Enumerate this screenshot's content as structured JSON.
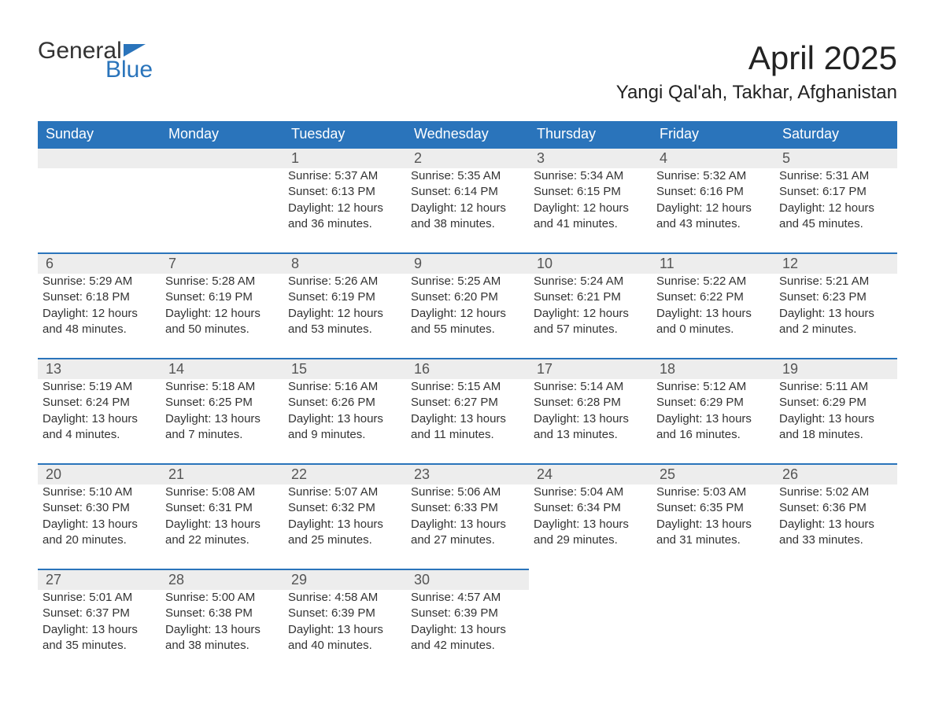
{
  "brand": {
    "part1": "General",
    "part2": "Blue"
  },
  "title": "April 2025",
  "location": "Yangi Qal'ah, Takhar, Afghanistan",
  "colors": {
    "header_bg": "#2a74bb",
    "header_text": "#ffffff",
    "daynum_bg": "#ededed",
    "daynum_border": "#2a74bb",
    "body_text": "#333333",
    "page_bg": "#ffffff",
    "brand_blue": "#2a74bb"
  },
  "fonts": {
    "title_size_pt": 32,
    "location_size_pt": 18,
    "dayheader_size_pt": 14,
    "daynum_size_pt": 14,
    "cell_size_pt": 11
  },
  "day_headers": [
    "Sunday",
    "Monday",
    "Tuesday",
    "Wednesday",
    "Thursday",
    "Friday",
    "Saturday"
  ],
  "weeks": [
    [
      null,
      null,
      {
        "n": "1",
        "sunrise": "Sunrise: 5:37 AM",
        "sunset": "Sunset: 6:13 PM",
        "d1": "Daylight: 12 hours",
        "d2": "and 36 minutes."
      },
      {
        "n": "2",
        "sunrise": "Sunrise: 5:35 AM",
        "sunset": "Sunset: 6:14 PM",
        "d1": "Daylight: 12 hours",
        "d2": "and 38 minutes."
      },
      {
        "n": "3",
        "sunrise": "Sunrise: 5:34 AM",
        "sunset": "Sunset: 6:15 PM",
        "d1": "Daylight: 12 hours",
        "d2": "and 41 minutes."
      },
      {
        "n": "4",
        "sunrise": "Sunrise: 5:32 AM",
        "sunset": "Sunset: 6:16 PM",
        "d1": "Daylight: 12 hours",
        "d2": "and 43 minutes."
      },
      {
        "n": "5",
        "sunrise": "Sunrise: 5:31 AM",
        "sunset": "Sunset: 6:17 PM",
        "d1": "Daylight: 12 hours",
        "d2": "and 45 minutes."
      }
    ],
    [
      {
        "n": "6",
        "sunrise": "Sunrise: 5:29 AM",
        "sunset": "Sunset: 6:18 PM",
        "d1": "Daylight: 12 hours",
        "d2": "and 48 minutes."
      },
      {
        "n": "7",
        "sunrise": "Sunrise: 5:28 AM",
        "sunset": "Sunset: 6:19 PM",
        "d1": "Daylight: 12 hours",
        "d2": "and 50 minutes."
      },
      {
        "n": "8",
        "sunrise": "Sunrise: 5:26 AM",
        "sunset": "Sunset: 6:19 PM",
        "d1": "Daylight: 12 hours",
        "d2": "and 53 minutes."
      },
      {
        "n": "9",
        "sunrise": "Sunrise: 5:25 AM",
        "sunset": "Sunset: 6:20 PM",
        "d1": "Daylight: 12 hours",
        "d2": "and 55 minutes."
      },
      {
        "n": "10",
        "sunrise": "Sunrise: 5:24 AM",
        "sunset": "Sunset: 6:21 PM",
        "d1": "Daylight: 12 hours",
        "d2": "and 57 minutes."
      },
      {
        "n": "11",
        "sunrise": "Sunrise: 5:22 AM",
        "sunset": "Sunset: 6:22 PM",
        "d1": "Daylight: 13 hours",
        "d2": "and 0 minutes."
      },
      {
        "n": "12",
        "sunrise": "Sunrise: 5:21 AM",
        "sunset": "Sunset: 6:23 PM",
        "d1": "Daylight: 13 hours",
        "d2": "and 2 minutes."
      }
    ],
    [
      {
        "n": "13",
        "sunrise": "Sunrise: 5:19 AM",
        "sunset": "Sunset: 6:24 PM",
        "d1": "Daylight: 13 hours",
        "d2": "and 4 minutes."
      },
      {
        "n": "14",
        "sunrise": "Sunrise: 5:18 AM",
        "sunset": "Sunset: 6:25 PM",
        "d1": "Daylight: 13 hours",
        "d2": "and 7 minutes."
      },
      {
        "n": "15",
        "sunrise": "Sunrise: 5:16 AM",
        "sunset": "Sunset: 6:26 PM",
        "d1": "Daylight: 13 hours",
        "d2": "and 9 minutes."
      },
      {
        "n": "16",
        "sunrise": "Sunrise: 5:15 AM",
        "sunset": "Sunset: 6:27 PM",
        "d1": "Daylight: 13 hours",
        "d2": "and 11 minutes."
      },
      {
        "n": "17",
        "sunrise": "Sunrise: 5:14 AM",
        "sunset": "Sunset: 6:28 PM",
        "d1": "Daylight: 13 hours",
        "d2": "and 13 minutes."
      },
      {
        "n": "18",
        "sunrise": "Sunrise: 5:12 AM",
        "sunset": "Sunset: 6:29 PM",
        "d1": "Daylight: 13 hours",
        "d2": "and 16 minutes."
      },
      {
        "n": "19",
        "sunrise": "Sunrise: 5:11 AM",
        "sunset": "Sunset: 6:29 PM",
        "d1": "Daylight: 13 hours",
        "d2": "and 18 minutes."
      }
    ],
    [
      {
        "n": "20",
        "sunrise": "Sunrise: 5:10 AM",
        "sunset": "Sunset: 6:30 PM",
        "d1": "Daylight: 13 hours",
        "d2": "and 20 minutes."
      },
      {
        "n": "21",
        "sunrise": "Sunrise: 5:08 AM",
        "sunset": "Sunset: 6:31 PM",
        "d1": "Daylight: 13 hours",
        "d2": "and 22 minutes."
      },
      {
        "n": "22",
        "sunrise": "Sunrise: 5:07 AM",
        "sunset": "Sunset: 6:32 PM",
        "d1": "Daylight: 13 hours",
        "d2": "and 25 minutes."
      },
      {
        "n": "23",
        "sunrise": "Sunrise: 5:06 AM",
        "sunset": "Sunset: 6:33 PM",
        "d1": "Daylight: 13 hours",
        "d2": "and 27 minutes."
      },
      {
        "n": "24",
        "sunrise": "Sunrise: 5:04 AM",
        "sunset": "Sunset: 6:34 PM",
        "d1": "Daylight: 13 hours",
        "d2": "and 29 minutes."
      },
      {
        "n": "25",
        "sunrise": "Sunrise: 5:03 AM",
        "sunset": "Sunset: 6:35 PM",
        "d1": "Daylight: 13 hours",
        "d2": "and 31 minutes."
      },
      {
        "n": "26",
        "sunrise": "Sunrise: 5:02 AM",
        "sunset": "Sunset: 6:36 PM",
        "d1": "Daylight: 13 hours",
        "d2": "and 33 minutes."
      }
    ],
    [
      {
        "n": "27",
        "sunrise": "Sunrise: 5:01 AM",
        "sunset": "Sunset: 6:37 PM",
        "d1": "Daylight: 13 hours",
        "d2": "and 35 minutes."
      },
      {
        "n": "28",
        "sunrise": "Sunrise: 5:00 AM",
        "sunset": "Sunset: 6:38 PM",
        "d1": "Daylight: 13 hours",
        "d2": "and 38 minutes."
      },
      {
        "n": "29",
        "sunrise": "Sunrise: 4:58 AM",
        "sunset": "Sunset: 6:39 PM",
        "d1": "Daylight: 13 hours",
        "d2": "and 40 minutes."
      },
      {
        "n": "30",
        "sunrise": "Sunrise: 4:57 AM",
        "sunset": "Sunset: 6:39 PM",
        "d1": "Daylight: 13 hours",
        "d2": "and 42 minutes."
      },
      null,
      null,
      null
    ]
  ]
}
